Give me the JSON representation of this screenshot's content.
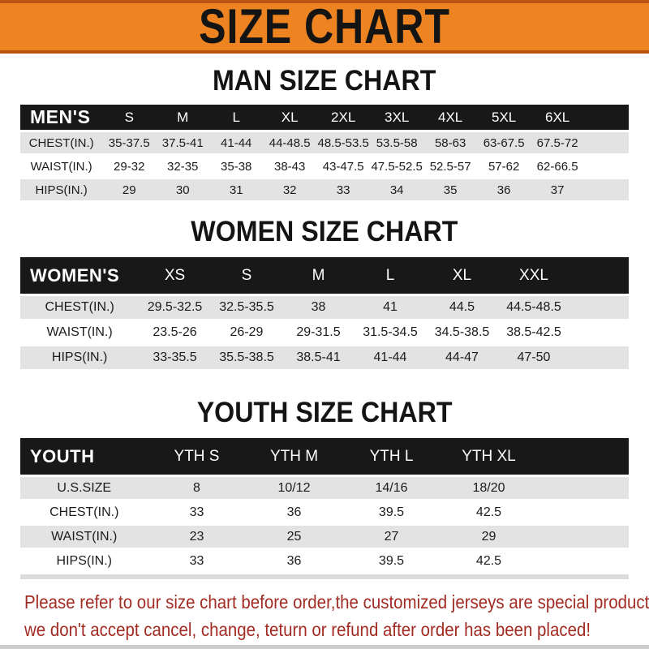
{
  "banner": {
    "title": "SIZE CHART",
    "bg_color": "#ED8421",
    "border_color": "#BC5312",
    "text_color": "#141414"
  },
  "colors": {
    "table_header_black": "#181818",
    "row_gray": "#E3E3E3",
    "row_white": "#FFFFFF",
    "note_red": "#A22C24"
  },
  "sections": [
    {
      "heading": "MAN SIZE CHART",
      "header_label": "MEN'S",
      "columns": [
        "S",
        "M",
        "L",
        "XL",
        "2XL",
        "3XL",
        "4XL",
        "5XL",
        "6XL"
      ],
      "rows": [
        {
          "label": "CHEST(IN.)",
          "values": [
            "35-37.5",
            "37.5-41",
            "41-44",
            "44-48.5",
            "48.5-53.5",
            "53.5-58",
            "58-63",
            "63-67.5",
            "67.5-72"
          ]
        },
        {
          "label": "WAIST(IN.)",
          "values": [
            "29-32",
            "32-35",
            "35-38",
            "38-43",
            "43-47.5",
            "47.5-52.5",
            "52.5-57",
            "57-62",
            "62-66.5"
          ]
        },
        {
          "label": "HIPS(IN.)",
          "values": [
            "29",
            "30",
            "31",
            "32",
            "33",
            "34",
            "35",
            "36",
            "37"
          ]
        }
      ]
    },
    {
      "heading": "WOMEN SIZE CHART",
      "header_label": "WOMEN'S",
      "columns": [
        "XS",
        "S",
        "M",
        "L",
        "XL",
        "XXL"
      ],
      "rows": [
        {
          "label": "CHEST(IN.)",
          "values": [
            "29.5-32.5",
            "32.5-35.5",
            "38",
            "41",
            "44.5",
            "44.5-48.5"
          ]
        },
        {
          "label": "WAIST(IN.)",
          "values": [
            "23.5-26",
            "26-29",
            "29-31.5",
            "31.5-34.5",
            "34.5-38.5",
            "38.5-42.5"
          ]
        },
        {
          "label": "HIPS(IN.)",
          "values": [
            "33-35.5",
            "35.5-38.5",
            "38.5-41",
            "41-44",
            "44-47",
            "47-50"
          ]
        }
      ]
    },
    {
      "heading": "YOUTH SIZE CHART",
      "header_label": "YOUTH",
      "columns": [
        "YTH S",
        "YTH M",
        "YTH L",
        "YTH XL"
      ],
      "rows": [
        {
          "label": "U.S.SIZE",
          "values": [
            "8",
            "10/12",
            "14/16",
            "18/20"
          ]
        },
        {
          "label": "CHEST(IN.)",
          "values": [
            "33",
            "36",
            "39.5",
            "42.5"
          ]
        },
        {
          "label": "WAIST(IN.)",
          "values": [
            "23",
            "25",
            "27",
            "29"
          ]
        },
        {
          "label": "HIPS(IN.)",
          "values": [
            "33",
            "36",
            "39.5",
            "42.5"
          ]
        }
      ]
    }
  ],
  "footer": {
    "line1": "Please refer to our size chart before order,the customized jerseys are special products,",
    "line2": "we don't accept cancel, change, teturn or refund after order has been placed!"
  }
}
